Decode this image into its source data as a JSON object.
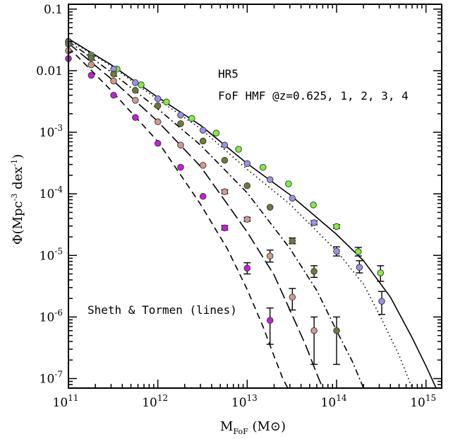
{
  "chart_data": {
    "type": "scatter",
    "xscale": "log",
    "yscale": "log",
    "xlim": [
      100000000000.0,
      1500000000000000.0
    ],
    "ylim": [
      7e-08,
      0.12
    ],
    "grid": false,
    "xlabel": {
      "main": "M",
      "sub": "FoF",
      "unit_open": " (M",
      "unit_close": ")"
    },
    "ylabel": {
      "main": "Φ(Mpc",
      "sup": "-3",
      "rest": " dex",
      "sup2": "-1",
      "close": ")"
    },
    "x_ticks": [
      {
        "value": 100000000000.0,
        "base": "10",
        "exp": "11"
      },
      {
        "value": 1000000000000.0,
        "base": "10",
        "exp": "12"
      },
      {
        "value": 10000000000000.0,
        "base": "10",
        "exp": "13"
      },
      {
        "value": 100000000000000.0,
        "base": "10",
        "exp": "14"
      },
      {
        "value": 1000000000000000.0,
        "base": "10",
        "exp": "15"
      }
    ],
    "y_ticks": [
      {
        "value": 0.1,
        "plain": "0.1"
      },
      {
        "value": 0.01,
        "plain": "0.01"
      },
      {
        "value": 0.001,
        "base": "10",
        "exp": "-3"
      },
      {
        "value": 0.0001,
        "base": "10",
        "exp": "-4"
      },
      {
        "value": 1e-05,
        "base": "10",
        "exp": "-5"
      },
      {
        "value": 1e-06,
        "base": "10",
        "exp": "-6"
      },
      {
        "value": 1e-07,
        "base": "10",
        "exp": "-7"
      }
    ],
    "annotations": {
      "label1": "HR5",
      "label2": "FoF HMF @z=0.625, 1, 2, 3, 4",
      "label3": "Sheth & Tormen (lines)"
    },
    "series": [
      {
        "z": 0.625,
        "color": "#80ee40",
        "line": "solid",
        "x": [
          100000000000.0,
          180000000000.0,
          350000000000.0,
          650000000000.0,
          1250000000000.0,
          2400000000000.0,
          4500000000000.0,
          8000000000000.0,
          15000000000000.0,
          29000000000000.0,
          55000000000000.0,
          100000000000000.0,
          175000000000000.0,
          310000000000000.0
        ],
        "y": [
          0.03,
          0.018,
          0.0106,
          0.0059,
          0.0031,
          0.00168,
          0.00097,
          0.00053,
          0.00027,
          0.000145,
          6.6e-05,
          2.95e-05,
          1.15e-05,
          5.2e-06
        ],
        "err": [
          null,
          null,
          null,
          null,
          null,
          null,
          null,
          null,
          null,
          null,
          null,
          [
            2.75e-05,
            3.15e-05
          ],
          [
            9.8e-06,
            1.35e-05
          ],
          [
            3.8e-06,
            6.8e-06
          ]
        ]
      },
      {
        "z": 1,
        "color": "#9a92e8",
        "line": "dotted",
        "x": [
          100000000000.0,
          180000000000.0,
          320000000000.0,
          560000000000.0,
          1000000000000.0,
          1800000000000.0,
          3200000000000.0,
          5600000000000.0,
          10000000000000.0,
          18000000000000.0,
          32000000000000.0,
          56000000000000.0,
          100000000000000.0,
          180000000000000.0,
          320000000000000.0
        ],
        "y": [
          0.029,
          0.017,
          0.0106,
          0.0064,
          0.0035,
          0.0019,
          0.00108,
          0.00062,
          0.00031,
          0.00017,
          8.5e-05,
          3.4e-05,
          1.17e-05,
          6.4e-06,
          1.8e-06
        ],
        "err": [
          null,
          null,
          null,
          null,
          null,
          null,
          null,
          null,
          null,
          null,
          null,
          [
            3.15e-05,
            3.65e-05
          ],
          [
            9.8e-06,
            1.38e-05
          ],
          [
            5.2e-06,
            8.2e-06
          ],
          [
            1.1e-06,
            2.6e-06
          ]
        ]
      },
      {
        "z": 2,
        "color": "#6e7a3a",
        "line": "dash-dot",
        "x": [
          100000000000.0,
          180000000000.0,
          320000000000.0,
          560000000000.0,
          1000000000000.0,
          1800000000000.0,
          3200000000000.0,
          5600000000000.0,
          10000000000000.0,
          18000000000000.0,
          32000000000000.0,
          56000000000000.0,
          100000000000000.0
        ],
        "y": [
          0.027,
          0.016,
          0.0088,
          0.0048,
          0.0027,
          0.00138,
          0.00072,
          0.00035,
          0.000135,
          6.05e-05,
          1.72e-05,
          5.5e-06,
          6e-07
        ],
        "err": [
          null,
          null,
          null,
          null,
          null,
          null,
          null,
          null,
          null,
          null,
          [
            1.55e-05,
            1.92e-05
          ],
          [
            4.4e-06,
            6.8e-06
          ],
          [
            1.7e-07,
            1e-06
          ]
        ]
      },
      {
        "z": 3,
        "color": "#d49a8c",
        "line": "long-dash",
        "x": [
          100000000000.0,
          180000000000.0,
          320000000000.0,
          560000000000.0,
          1000000000000.0,
          1800000000000.0,
          3200000000000.0,
          5600000000000.0,
          10000000000000.0,
          18000000000000.0,
          32000000000000.0,
          56000000000000.0
        ],
        "y": [
          0.021,
          0.0125,
          0.0068,
          0.0033,
          0.00148,
          0.00062,
          0.00029,
          0.000108,
          3.85e-05,
          9.8e-06,
          2.1e-06,
          6e-07
        ],
        "err": [
          null,
          null,
          null,
          null,
          null,
          null,
          null,
          [
            0.000101,
            0.000116
          ],
          [
            3.58e-05,
            4.15e-05
          ],
          [
            7.8e-06,
            1.22e-05
          ],
          [
            1.3e-06,
            2.9e-06
          ],
          [
            1.7e-07,
            1e-06
          ]
        ]
      },
      {
        "z": 4,
        "color": "#c41fd8",
        "line": "dashed",
        "x": [
          100000000000.0,
          180000000000.0,
          320000000000.0,
          560000000000.0,
          1000000000000.0,
          1800000000000.0,
          3200000000000.0,
          5600000000000.0,
          10000000000000.0,
          18000000000000.0
        ],
        "y": [
          0.0157,
          0.0084,
          0.004,
          0.00174,
          0.00066,
          0.00027,
          9.1e-05,
          2.8e-05,
          6.2e-06,
          8.8e-07
        ],
        "err": [
          null,
          null,
          null,
          null,
          null,
          null,
          null,
          [
            2.58e-05,
            3.06e-05
          ],
          [
            5e-06,
            7.6e-06
          ],
          [
            3.6e-07,
            1.4e-06
          ]
        ]
      }
    ],
    "model_lines": [
      {
        "z": 0.625,
        "style": "solid",
        "x": [
          100000000000.0,
          300000000000.0,
          1000000000000.0,
          3000000000000.0,
          10000000000000.0,
          30000000000000.0,
          100000000000000.0,
          200000000000000.0,
          400000000000000.0,
          700000000000000.0,
          1000000000000000.0,
          1300000000000000.0
        ],
        "y": [
          0.033,
          0.0125,
          0.0037,
          0.0013,
          0.00031,
          9.7e-05,
          2.2e-05,
          8.2e-06,
          2.1e-06,
          4.6e-07,
          1.6e-07,
          7e-08
        ]
      },
      {
        "z": 1,
        "style": "dotted",
        "x": [
          100000000000.0,
          300000000000.0,
          1000000000000.0,
          3000000000000.0,
          10000000000000.0,
          30000000000000.0,
          100000000000000.0,
          200000000000000.0,
          300000000000000.0,
          500000000000000.0,
          700000000000000.0
        ],
        "y": [
          0.032,
          0.012,
          0.0034,
          0.00115,
          0.00025,
          6.8e-05,
          1.18e-05,
          3.4e-06,
          1.1e-06,
          2.4e-07,
          7e-08
        ]
      },
      {
        "z": 2,
        "style": "dash-dot",
        "x": [
          100000000000.0,
          300000000000.0,
          1000000000000.0,
          3000000000000.0,
          10000000000000.0,
          30000000000000.0,
          60000000000000.0,
          100000000000000.0,
          150000000000000.0,
          200000000000000.0
        ],
        "y": [
          0.03,
          0.0095,
          0.0024,
          0.00062,
          0.000104,
          1.3e-05,
          2.7e-06,
          6e-07,
          1.9e-07,
          7e-08
        ]
      },
      {
        "z": 3,
        "style": "long-dash",
        "x": [
          100000000000.0,
          300000000000.0,
          1000000000000.0,
          3000000000000.0,
          10000000000000.0,
          20000000000000.0,
          30000000000000.0,
          45000000000000.0,
          60000000000000.0,
          70000000000000.0
        ],
        "y": [
          0.028,
          0.0074,
          0.0015,
          0.00028,
          2.4e-05,
          4.8e-06,
          1.3e-06,
          3.5e-07,
          1.2e-07,
          7e-08
        ]
      },
      {
        "z": 4,
        "style": "dashed",
        "x": [
          100000000000.0,
          300000000000.0,
          1000000000000.0,
          3000000000000.0,
          6000000000000.0,
          10000000000000.0,
          15000000000000.0,
          20000000000000.0,
          25000000000000.0,
          30000000000000.0
        ],
        "y": [
          0.024,
          0.0048,
          0.00071,
          6.8e-05,
          1.28e-05,
          2.8e-06,
          7e-07,
          2.3e-07,
          1e-07,
          6e-08
        ]
      }
    ]
  }
}
